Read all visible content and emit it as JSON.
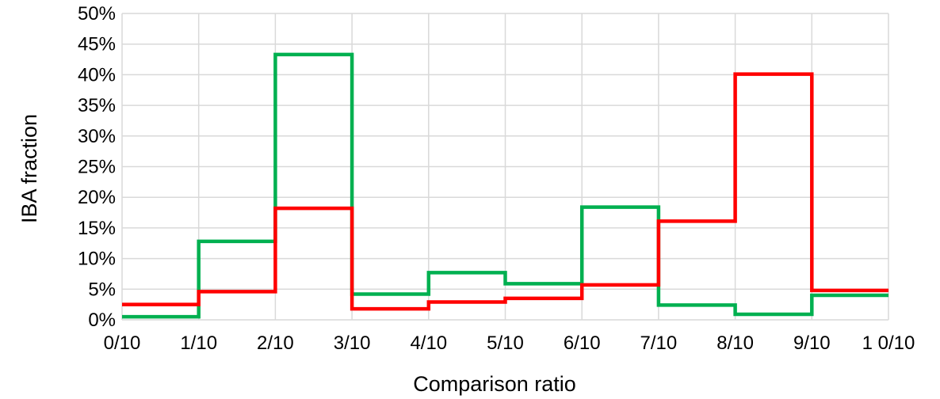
{
  "chart_data": {
    "type": "line",
    "step": true,
    "title": "",
    "xlabel": "Comparison ratio",
    "ylabel": "IBA fraction",
    "x_tick_labels": [
      "0/10",
      "1/10",
      "2/10",
      "3/10",
      "4/10",
      "5/10",
      "6/10",
      "7/10",
      "8/10",
      "9/10",
      "1 0/10"
    ],
    "y_tick_labels": [
      "0%",
      "5%",
      "10%",
      "15%",
      "20%",
      "25%",
      "30%",
      "35%",
      "40%",
      "45%",
      "50%"
    ],
    "xlim": [
      0,
      10
    ],
    "ylim": [
      0,
      50
    ],
    "grid": true,
    "legend": "none",
    "series": [
      {
        "color": "#00b050",
        "values": [
          0.5,
          12.8,
          43.3,
          4.2,
          7.7,
          5.9,
          18.4,
          2.4,
          0.9,
          4.0
        ]
      },
      {
        "color": "#ff0000",
        "values": [
          2.5,
          4.6,
          18.2,
          1.8,
          2.9,
          3.5,
          5.7,
          16.1,
          40.1,
          4.8
        ]
      }
    ]
  }
}
